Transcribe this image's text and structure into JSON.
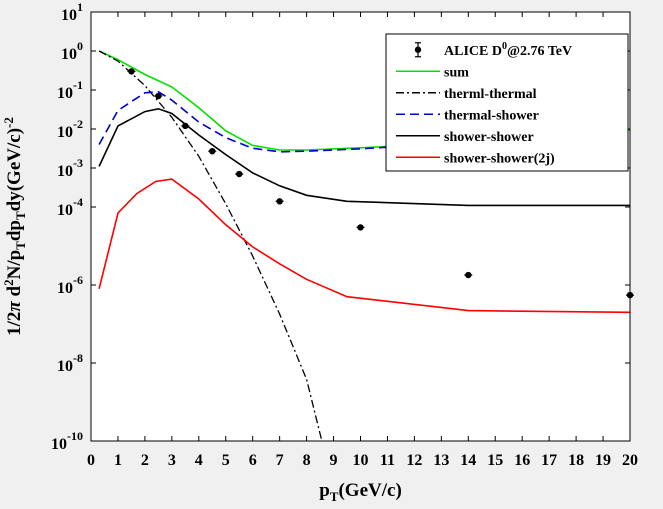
{
  "chart_data": {
    "type": "line",
    "title": "",
    "xlabel": {
      "main": "p",
      "sub": "T",
      "tail": "(GeV/c)"
    },
    "ylabel": [
      {
        "t": "1/2",
        "k": "n"
      },
      {
        "t": "π",
        "k": "n"
      },
      {
        "t": " d",
        "k": "n"
      },
      {
        "t": "2",
        "k": "sup"
      },
      {
        "t": "N/p",
        "k": "n"
      },
      {
        "t": "T",
        "k": "sub"
      },
      {
        "t": "dp",
        "k": "n"
      },
      {
        "t": "T",
        "k": "sub"
      },
      {
        "t": "dy(GeV/c)",
        "k": "n"
      },
      {
        "t": "-2",
        "k": "sup"
      }
    ],
    "x_range": [
      0,
      20
    ],
    "y_scale": "log",
    "y_range": [
      1e-10,
      10
    ],
    "x_ticks": [
      "0",
      "1",
      "2",
      "3",
      "4",
      "5",
      "6",
      "7",
      "8",
      "9",
      "10",
      "11",
      "12",
      "13",
      "14",
      "15",
      "16",
      "17",
      "18",
      "19",
      "20"
    ],
    "y_ticks": [
      {
        "value": 1e-10,
        "base": "10",
        "exp": "-10"
      },
      {
        "value": 1e-08,
        "base": "10",
        "exp": "-8"
      },
      {
        "value": 1e-06,
        "base": "10",
        "exp": "-6"
      },
      {
        "value": 0.0001,
        "base": "10",
        "exp": "-4"
      },
      {
        "value": 0.001,
        "base": "10",
        "exp": "-3"
      },
      {
        "value": 0.01,
        "base": "10",
        "exp": "-2"
      },
      {
        "value": 0.1,
        "base": "10",
        "exp": "-1"
      },
      {
        "value": 1,
        "base": "10",
        "exp": "0"
      },
      {
        "value": 10,
        "base": "10",
        "exp": "1"
      }
    ],
    "grid": false,
    "legend_position": "top-right",
    "legend": {
      "data_label": {
        "main": "ALICE D",
        "sup": "0",
        "tail": "@2.76 TeV"
      }
    },
    "data_points": {
      "name": "ALICE D0@2.76 TeV",
      "color": "#000000",
      "x": [
        1.5,
        2.5,
        3.5,
        4.5,
        5.5,
        7.0,
        10.0,
        14.0,
        20.0
      ],
      "y": [
        0.3,
        0.07,
        0.012,
        0.0027,
        0.0007,
        0.00014,
        3e-05,
        1.8e-06,
        5.5e-07
      ]
    },
    "series": [
      {
        "name": "sum",
        "color": "#00e000",
        "dash": "solid",
        "x": [
          0.3,
          1,
          2,
          3,
          4,
          5,
          6,
          7,
          8,
          10,
          14,
          20
        ],
        "y": [
          1.0,
          0.6,
          0.25,
          0.12,
          0.035,
          0.009,
          0.0038,
          0.0029,
          0.0029,
          0.0033,
          0.0045,
          0.0095
        ]
      },
      {
        "name": "therml-thermal",
        "color": "#000000",
        "dash": "dashdot",
        "x": [
          0.3,
          1,
          2,
          3,
          4,
          5,
          6,
          7,
          8,
          8.6
        ],
        "y": [
          1.0,
          0.55,
          0.13,
          0.02,
          0.002,
          0.00012,
          5.5e-06,
          1.8e-07,
          3.8e-09,
          8e-11
        ]
      },
      {
        "name": "thermal-shower",
        "color": "#0000cc",
        "dash": "dashed",
        "x": [
          0.3,
          1,
          2,
          2.5,
          3,
          4,
          5,
          6,
          7,
          8,
          10,
          14,
          20
        ],
        "y": [
          0.004,
          0.03,
          0.085,
          0.09,
          0.055,
          0.015,
          0.006,
          0.0032,
          0.0026,
          0.0027,
          0.0031,
          0.0045,
          0.0082
        ]
      },
      {
        "name": "shower-shower",
        "color": "#000000",
        "dash": "solid",
        "x": [
          0.3,
          1,
          2,
          2.5,
          3,
          4,
          5,
          6,
          7,
          8,
          9.5,
          14,
          20
        ],
        "y": [
          0.0011,
          0.012,
          0.028,
          0.033,
          0.025,
          0.007,
          0.0022,
          0.00075,
          0.00035,
          0.0002,
          0.00014,
          0.00011,
          0.00011
        ]
      },
      {
        "name": "shower-shower(2j)",
        "color": "#ff0000",
        "dash": "solid",
        "x": [
          0.3,
          1,
          1.7,
          2.4,
          3,
          4,
          5,
          6,
          7,
          8,
          9.5,
          14,
          20
        ],
        "y": [
          8e-07,
          7e-05,
          0.00022,
          0.00045,
          0.00052,
          0.00016,
          3.5e-05,
          9.5e-06,
          3.5e-06,
          1.4e-06,
          5e-07,
          2.2e-07,
          2e-07
        ]
      }
    ]
  }
}
